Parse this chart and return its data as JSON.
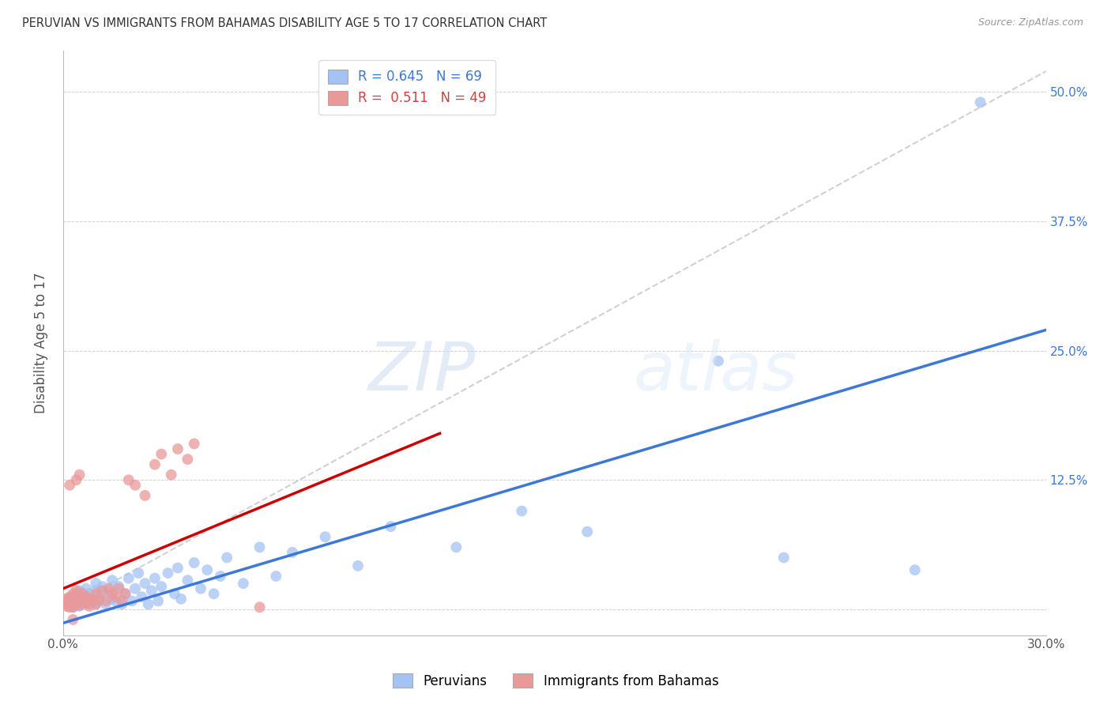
{
  "title": "PERUVIAN VS IMMIGRANTS FROM BAHAMAS DISABILITY AGE 5 TO 17 CORRELATION CHART",
  "source": "Source: ZipAtlas.com",
  "ylabel": "Disability Age 5 to 17",
  "x_min": 0.0,
  "x_max": 0.3,
  "y_min": -0.025,
  "y_max": 0.54,
  "x_ticks": [
    0.0,
    0.05,
    0.1,
    0.15,
    0.2,
    0.25,
    0.3
  ],
  "x_tick_labels": [
    "0.0%",
    "",
    "",
    "",
    "",
    "",
    "30.0%"
  ],
  "y_ticks": [
    0.0,
    0.125,
    0.25,
    0.375,
    0.5
  ],
  "y_tick_labels": [
    "",
    "12.5%",
    "25.0%",
    "37.5%",
    "50.0%"
  ],
  "blue_color": "#a4c2f4",
  "pink_color": "#ea9999",
  "blue_line_color": "#3c78d8",
  "pink_line_color": "#cc0000",
  "dashed_line_color": "#cccccc",
  "legend_blue_R": "0.645",
  "legend_blue_N": "69",
  "legend_pink_R": "0.511",
  "legend_pink_N": "49",
  "watermark": "ZIPatlas",
  "legend_label_blue": "Peruvians",
  "legend_label_pink": "Immigrants from Bahamas",
  "blue_scatter": [
    [
      0.001,
      0.005
    ],
    [
      0.001,
      0.008
    ],
    [
      0.002,
      0.003
    ],
    [
      0.002,
      0.01
    ],
    [
      0.003,
      0.006
    ],
    [
      0.003,
      0.012
    ],
    [
      0.003,
      0.002
    ],
    [
      0.004,
      0.008
    ],
    [
      0.004,
      0.015
    ],
    [
      0.004,
      0.004
    ],
    [
      0.005,
      0.01
    ],
    [
      0.005,
      0.003
    ],
    [
      0.005,
      0.018
    ],
    [
      0.006,
      0.005
    ],
    [
      0.006,
      0.012
    ],
    [
      0.007,
      0.008
    ],
    [
      0.007,
      0.02
    ],
    [
      0.008,
      0.005
    ],
    [
      0.008,
      0.015
    ],
    [
      0.009,
      0.01
    ],
    [
      0.01,
      0.005
    ],
    [
      0.01,
      0.018
    ],
    [
      0.01,
      0.025
    ],
    [
      0.011,
      0.008
    ],
    [
      0.012,
      0.015
    ],
    [
      0.012,
      0.022
    ],
    [
      0.013,
      0.005
    ],
    [
      0.014,
      0.018
    ],
    [
      0.015,
      0.01
    ],
    [
      0.015,
      0.028
    ],
    [
      0.016,
      0.008
    ],
    [
      0.017,
      0.022
    ],
    [
      0.018,
      0.005
    ],
    [
      0.019,
      0.015
    ],
    [
      0.02,
      0.03
    ],
    [
      0.021,
      0.008
    ],
    [
      0.022,
      0.02
    ],
    [
      0.023,
      0.035
    ],
    [
      0.024,
      0.012
    ],
    [
      0.025,
      0.025
    ],
    [
      0.026,
      0.005
    ],
    [
      0.027,
      0.018
    ],
    [
      0.028,
      0.03
    ],
    [
      0.029,
      0.008
    ],
    [
      0.03,
      0.022
    ],
    [
      0.032,
      0.035
    ],
    [
      0.034,
      0.015
    ],
    [
      0.035,
      0.04
    ],
    [
      0.036,
      0.01
    ],
    [
      0.038,
      0.028
    ],
    [
      0.04,
      0.045
    ],
    [
      0.042,
      0.02
    ],
    [
      0.044,
      0.038
    ],
    [
      0.046,
      0.015
    ],
    [
      0.048,
      0.032
    ],
    [
      0.05,
      0.05
    ],
    [
      0.055,
      0.025
    ],
    [
      0.06,
      0.06
    ],
    [
      0.065,
      0.032
    ],
    [
      0.07,
      0.055
    ],
    [
      0.08,
      0.07
    ],
    [
      0.09,
      0.042
    ],
    [
      0.1,
      0.08
    ],
    [
      0.12,
      0.06
    ],
    [
      0.14,
      0.095
    ],
    [
      0.16,
      0.075
    ],
    [
      0.2,
      0.24
    ],
    [
      0.22,
      0.05
    ],
    [
      0.26,
      0.038
    ],
    [
      0.28,
      0.49
    ]
  ],
  "pink_scatter": [
    [
      0.001,
      0.003
    ],
    [
      0.001,
      0.006
    ],
    [
      0.001,
      0.01
    ],
    [
      0.002,
      0.004
    ],
    [
      0.002,
      0.008
    ],
    [
      0.002,
      0.002
    ],
    [
      0.002,
      0.012
    ],
    [
      0.003,
      0.005
    ],
    [
      0.003,
      0.009
    ],
    [
      0.003,
      0.015
    ],
    [
      0.003,
      0.002
    ],
    [
      0.004,
      0.006
    ],
    [
      0.004,
      0.011
    ],
    [
      0.004,
      0.018
    ],
    [
      0.005,
      0.004
    ],
    [
      0.005,
      0.008
    ],
    [
      0.005,
      0.013
    ],
    [
      0.006,
      0.01
    ],
    [
      0.006,
      0.015
    ],
    [
      0.007,
      0.006
    ],
    [
      0.007,
      0.012
    ],
    [
      0.008,
      0.003
    ],
    [
      0.008,
      0.01
    ],
    [
      0.009,
      0.008
    ],
    [
      0.01,
      0.005
    ],
    [
      0.01,
      0.015
    ],
    [
      0.011,
      0.01
    ],
    [
      0.012,
      0.018
    ],
    [
      0.013,
      0.008
    ],
    [
      0.014,
      0.02
    ],
    [
      0.015,
      0.015
    ],
    [
      0.016,
      0.012
    ],
    [
      0.017,
      0.02
    ],
    [
      0.018,
      0.008
    ],
    [
      0.019,
      0.015
    ],
    [
      0.02,
      0.125
    ],
    [
      0.022,
      0.12
    ],
    [
      0.025,
      0.11
    ],
    [
      0.028,
      0.14
    ],
    [
      0.03,
      0.15
    ],
    [
      0.033,
      0.13
    ],
    [
      0.035,
      0.155
    ],
    [
      0.038,
      0.145
    ],
    [
      0.04,
      0.16
    ],
    [
      0.005,
      0.13
    ],
    [
      0.004,
      0.125
    ],
    [
      0.002,
      0.12
    ],
    [
      0.06,
      0.002
    ],
    [
      0.003,
      -0.01
    ]
  ],
  "blue_line_x": [
    -0.005,
    0.3
  ],
  "blue_line_y": [
    -0.018,
    0.27
  ],
  "pink_line_x": [
    0.0,
    0.115
  ],
  "pink_line_y": [
    0.02,
    0.17
  ],
  "dashed_line_x": [
    0.0,
    0.3
  ],
  "dashed_line_y": [
    0.0,
    0.52
  ]
}
